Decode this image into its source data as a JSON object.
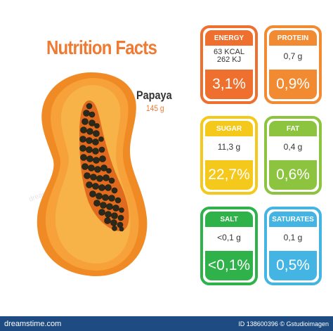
{
  "title": "Nutrition Facts",
  "fruit": {
    "name": "Papaya",
    "weight": "145 g"
  },
  "cards": [
    {
      "label": "ENERGY",
      "value_lines": [
        "63 KCAL",
        "262 KJ"
      ],
      "percent": "3,1%",
      "color": "#ee6f2e"
    },
    {
      "label": "PROTEIN",
      "value_lines": [
        "0,7 g"
      ],
      "percent": "0,9%",
      "color": "#f28a32"
    },
    {
      "label": "SUGAR",
      "value_lines": [
        "11,3 g"
      ],
      "percent": "22,7%",
      "color": "#f5c81c"
    },
    {
      "label": "FAT",
      "value_lines": [
        "0,4 g"
      ],
      "percent": "0,6%",
      "color": "#8cc43f"
    },
    {
      "label": "SALT",
      "value_lines": [
        "<0,1 g"
      ],
      "percent": "<0,1%",
      "color": "#2fb24a"
    },
    {
      "label": "SATURATES",
      "value_lines": [
        "0,1 g"
      ],
      "percent": "0,5%",
      "color": "#44b5e3"
    }
  ],
  "footer": {
    "site": "dreamstime.com",
    "id": "ID 138600396 © Gstudioimagen"
  },
  "watermark": "dreamstime"
}
